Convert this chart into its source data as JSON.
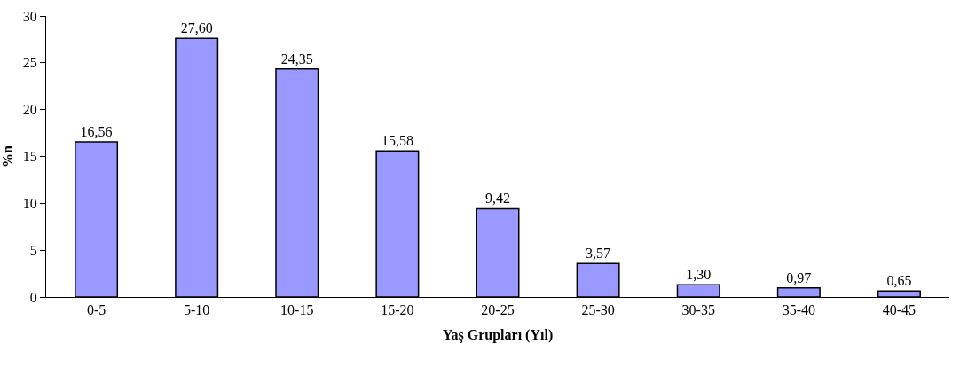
{
  "chart_data": {
    "type": "bar",
    "xlabel": "Yaş Grupları (Yıl)",
    "ylabel": "%n",
    "categories": [
      "0-5",
      "5-10",
      "10-15",
      "15-20",
      "20-25",
      "25-30",
      "30-35",
      "35-40",
      "40-45"
    ],
    "values": [
      16.56,
      27.6,
      24.35,
      15.58,
      9.42,
      3.57,
      1.3,
      0.97,
      0.65
    ],
    "value_labels": [
      "16,56",
      "27,60",
      "24,35",
      "15,58",
      "9,42",
      "3,57",
      "1,30",
      "0,97",
      "0,65"
    ],
    "color": "#9999ff",
    "ylim": [
      0,
      30
    ],
    "yticks": [
      0,
      5,
      10,
      15,
      20,
      25,
      30
    ],
    "grid": false,
    "legend": false
  }
}
